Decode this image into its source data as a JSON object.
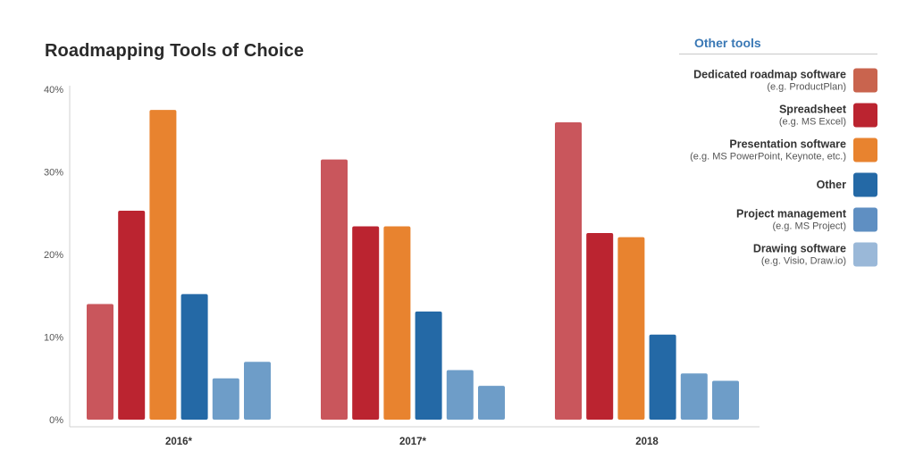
{
  "chart_data": {
    "type": "bar",
    "title": "Roadmapping Tools of Choice",
    "categories": [
      "2016*",
      "2017*",
      "2018"
    ],
    "ylim": [
      0,
      40
    ],
    "yticks": [
      "0%",
      "10%",
      "20%",
      "30%",
      "40%"
    ],
    "grid": false,
    "legend_title": "Other tools",
    "legend_position": "right",
    "series": [
      {
        "name": "Dedicated roadmap software",
        "sub": "(e.g. ProductPlan)",
        "color": "#c9565c",
        "swatch": "#c9644e",
        "values": [
          14,
          31.5,
          36
        ]
      },
      {
        "name": "Spreadsheet",
        "sub": "(e.g. MS Excel)",
        "color": "#bb2430",
        "swatch": "#bb2430",
        "values": [
          25.3,
          23.4,
          22.6
        ]
      },
      {
        "name": "Presentation software",
        "sub": "(e.g. MS PowerPoint, Keynote, etc.)",
        "color": "#e8832f",
        "swatch": "#e8832f",
        "values": [
          37.5,
          23.4,
          22.1
        ]
      },
      {
        "name": "Other",
        "sub": "",
        "color": "#2469a6",
        "swatch": "#2469a6",
        "values": [
          15.2,
          13.1,
          10.3
        ]
      },
      {
        "name": "Project management",
        "sub": "(e.g. MS Project)",
        "color": "#6e9dc8",
        "swatch": "#5f8fc2",
        "values": [
          5,
          6,
          5.6
        ]
      },
      {
        "name": "Drawing software",
        "sub": "(e.g. Visio, Draw.io)",
        "color": "#6e9dc8",
        "swatch": "#9ab8d8",
        "values": [
          7,
          4.1,
          4.7
        ]
      }
    ]
  }
}
